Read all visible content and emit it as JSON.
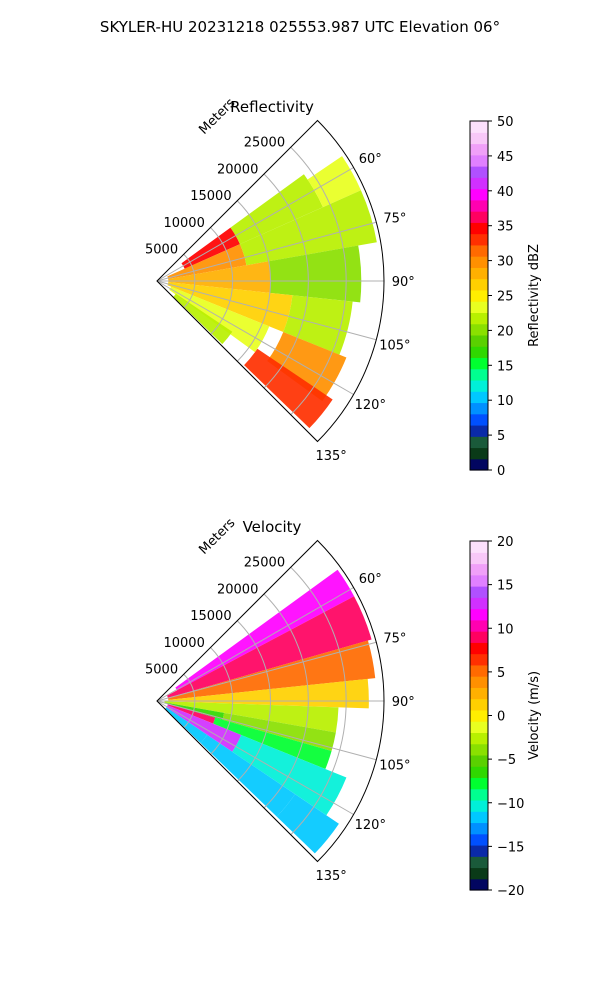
{
  "suptitle": "SKYLER-HU  20231218  025553.987 UTC Elevation 06°",
  "chart_data": [
    {
      "type": "heatmap",
      "projection": "polar-sector (PPI)",
      "title": "Reflectivity",
      "range_axis": {
        "label": "Meters",
        "ticks": [
          5000,
          10000,
          15000,
          20000,
          25000
        ],
        "tick_labels": [
          "5000",
          "10000",
          "15000",
          "20000",
          "25000"
        ],
        "max": 30000
      },
      "azimuth_axis": {
        "ticks": [
          60,
          75,
          90,
          105,
          120,
          135
        ],
        "tick_labels": [
          "60°",
          "75°",
          "90°",
          "105°",
          "120°",
          "135°"
        ],
        "range": [
          45,
          135
        ]
      },
      "grid": true,
      "colorbar": {
        "label": "Reflectivity dBZ",
        "min": 0,
        "max": 50,
        "ticks": [
          0,
          5,
          10,
          15,
          20,
          25,
          30,
          35,
          40,
          45,
          50
        ],
        "tick_labels": [
          "0",
          "5",
          "10",
          "15",
          "20",
          "25",
          "30",
          "35",
          "40",
          "45",
          "50"
        ],
        "colors": [
          "#020660",
          "#0a3a18",
          "#1a5a3a",
          "#0a2aa8",
          "#0050ff",
          "#0090ff",
          "#00c8ff",
          "#00f0d8",
          "#00ff90",
          "#00ff30",
          "#30d800",
          "#5ad000",
          "#8ae000",
          "#b8f000",
          "#e8ff20",
          "#ffee00",
          "#ffd000",
          "#ffb000",
          "#ff9000",
          "#ff6a00",
          "#ff3000",
          "#ff0000",
          "#ff0060",
          "#ff00b0",
          "#ff00ff",
          "#d030ff",
          "#b050ff",
          "#e080ff",
          "#f0a0f8",
          "#f8c8f8",
          "#fce0fc"
        ]
      },
      "sectors": [
        {
          "azimuth": [
            54,
            66
          ],
          "range": [
            4000,
            12000
          ],
          "value": 35
        },
        {
          "azimuth": [
            54,
            66
          ],
          "range": [
            12000,
            24000
          ],
          "value": 22
        },
        {
          "azimuth": [
            56,
            66
          ],
          "range": [
            24000,
            29500
          ],
          "value": 24
        },
        {
          "azimuth": [
            66,
            80
          ],
          "range": [
            1500,
            12000
          ],
          "value": 30
        },
        {
          "azimuth": [
            66,
            80
          ],
          "range": [
            12000,
            29500
          ],
          "value": 21
        },
        {
          "azimuth": [
            80,
            96
          ],
          "range": [
            1500,
            15000
          ],
          "value": 28
        },
        {
          "azimuth": [
            80,
            96
          ],
          "range": [
            15000,
            27000
          ],
          "value": 20
        },
        {
          "azimuth": [
            96,
            112
          ],
          "range": [
            1500,
            18000
          ],
          "value": 27
        },
        {
          "azimuth": [
            96,
            112
          ],
          "range": [
            18000,
            26000
          ],
          "value": 22
        },
        {
          "azimuth": [
            112,
            126
          ],
          "range": [
            2000,
            16000
          ],
          "value": 24
        },
        {
          "azimuth": [
            112,
            126
          ],
          "range": [
            18000,
            27000
          ],
          "value": 30
        },
        {
          "azimuth": [
            124,
            134
          ],
          "range": [
            3000,
            12000
          ],
          "value": 22
        },
        {
          "azimuth": [
            124,
            134
          ],
          "range": [
            16000,
            28000
          ],
          "value": 33
        }
      ]
    },
    {
      "type": "heatmap",
      "projection": "polar-sector (PPI)",
      "title": "Velocity",
      "range_axis": {
        "label": "Meters",
        "ticks": [
          5000,
          10000,
          15000,
          20000,
          25000
        ],
        "tick_labels": [
          "5000",
          "10000",
          "15000",
          "20000",
          "25000"
        ],
        "max": 30000
      },
      "azimuth_axis": {
        "ticks": [
          60,
          75,
          90,
          105,
          120,
          135
        ],
        "tick_labels": [
          "60°",
          "75°",
          "90°",
          "105°",
          "120°",
          "135°"
        ],
        "range": [
          45,
          135
        ]
      },
      "grid": true,
      "colorbar": {
        "label": "Velocity (m/s)",
        "min": -20,
        "max": 20,
        "ticks": [
          -20,
          -15,
          -10,
          -5,
          0,
          5,
          10,
          15,
          20
        ],
        "tick_labels": [
          "−20",
          "−15",
          "−10",
          "−5",
          "0",
          "5",
          "10",
          "15",
          "20"
        ],
        "colors": [
          "#020660",
          "#0a3a18",
          "#1a5a3a",
          "#0a2aa8",
          "#0050ff",
          "#0090ff",
          "#00c8ff",
          "#00f0d8",
          "#00ff90",
          "#00ff30",
          "#30d800",
          "#5ad000",
          "#8ae000",
          "#b8f000",
          "#e8ff20",
          "#ffee00",
          "#ffd000",
          "#ffb000",
          "#ff9000",
          "#ff6a00",
          "#ff3000",
          "#ff0000",
          "#ff0060",
          "#ff00b0",
          "#ff00ff",
          "#d030ff",
          "#b050ff",
          "#e080ff",
          "#f0a0f8",
          "#f8c8f8",
          "#fce0fc"
        ]
      },
      "sectors": [
        {
          "azimuth": [
            54,
            62
          ],
          "range": [
            3000,
            29500
          ],
          "value": 12
        },
        {
          "azimuth": [
            62,
            74
          ],
          "range": [
            1500,
            29500
          ],
          "value": 9
        },
        {
          "azimuth": [
            74,
            84
          ],
          "range": [
            1500,
            29000
          ],
          "value": 5
        },
        {
          "azimuth": [
            84,
            92
          ],
          "range": [
            1500,
            28000
          ],
          "value": 1
        },
        {
          "azimuth": [
            92,
            100
          ],
          "range": [
            1000,
            24000
          ],
          "value": -3
        },
        {
          "azimuth": [
            100,
            106
          ],
          "range": [
            1000,
            9000
          ],
          "value": -6
        },
        {
          "azimuth": [
            100,
            106
          ],
          "range": [
            9000,
            24000
          ],
          "value": -4
        },
        {
          "azimuth": [
            106,
            112
          ],
          "range": [
            1500,
            8000
          ],
          "value": 9
        },
        {
          "azimuth": [
            106,
            112
          ],
          "range": [
            8000,
            24000
          ],
          "value": -8
        },
        {
          "azimuth": [
            112,
            124
          ],
          "range": [
            1500,
            12000
          ],
          "value": 13
        },
        {
          "azimuth": [
            112,
            124
          ],
          "range": [
            12000,
            27000
          ],
          "value": -10
        },
        {
          "azimuth": [
            124,
            134
          ],
          "range": [
            1500,
            8000
          ],
          "value": -11
        },
        {
          "azimuth": [
            124,
            134
          ],
          "range": [
            8000,
            22000
          ],
          "value": -12
        },
        {
          "azimuth": [
            124,
            134
          ],
          "range": [
            22000,
            29000
          ],
          "value": -11
        }
      ]
    }
  ]
}
